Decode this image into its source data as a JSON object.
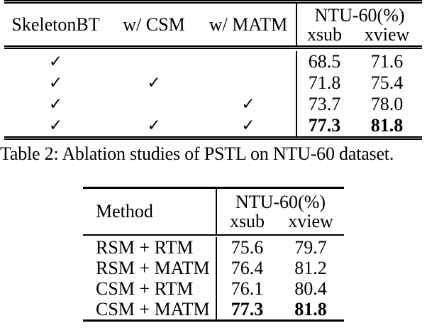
{
  "table1": {
    "col_headers": [
      "SkeletonBT",
      "w/ CSM",
      "w/ MATM"
    ],
    "group_header": "NTU-60(%)",
    "subcolumns": [
      "xsub",
      "xview"
    ],
    "checkmark_glyph": "✓",
    "rows": [
      {
        "c1": "✓",
        "c2": "",
        "c3": "",
        "xsub": "68.5",
        "xview": "71.6"
      },
      {
        "c1": "✓",
        "c2": "✓",
        "c3": "",
        "xsub": "71.8",
        "xview": "75.4"
      },
      {
        "c1": "✓",
        "c2": "",
        "c3": "✓",
        "xsub": "73.7",
        "xview": "78.0"
      },
      {
        "c1": "✓",
        "c2": "✓",
        "c3": "✓",
        "xsub": "77.3",
        "xview": "81.8"
      }
    ]
  },
  "caption": "Table 2: Ablation studies of PSTL on NTU-60 dataset.",
  "table2": {
    "method_header": "Method",
    "group_header": "NTU-60(%)",
    "subcolumns": [
      "xsub",
      "xview"
    ],
    "rows": [
      {
        "method": "RSM + RTM",
        "xsub": "75.6",
        "xview": "79.7"
      },
      {
        "method": "RSM + MATM",
        "xsub": "76.4",
        "xview": "81.2"
      },
      {
        "method": "CSM + RTM",
        "xsub": "76.1",
        "xview": "80.4"
      },
      {
        "method": "CSM + MATM",
        "xsub": "77.3",
        "xview": "81.8"
      }
    ]
  },
  "colors": {
    "text": "#000000",
    "background": "#ffffff",
    "rule": "#000000"
  }
}
